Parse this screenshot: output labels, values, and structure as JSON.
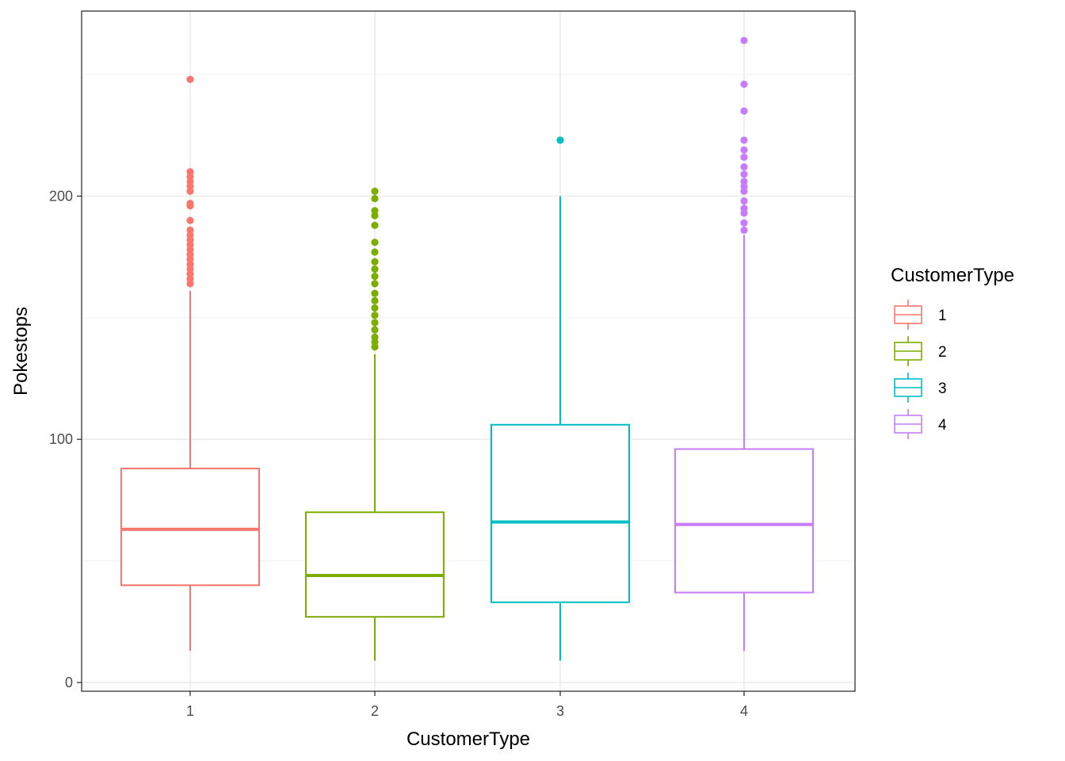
{
  "chart_data": {
    "type": "boxplot",
    "xlabel": "CustomerType",
    "ylabel": "Pokestops",
    "ylim": [
      -4,
      276
    ],
    "y_ticks": [
      0,
      100,
      200
    ],
    "y_minor_ticks": [
      50,
      150,
      250
    ],
    "grid": true,
    "legend": {
      "title": "CustomerType",
      "placement": "right"
    },
    "colors": {
      "1": "#F8766D",
      "2": "#7CAE00",
      "3": "#00BFC4",
      "4": "#C77CFF"
    },
    "categories": [
      "1",
      "2",
      "3",
      "4"
    ],
    "boxes": [
      {
        "category": "1",
        "min": 13,
        "q1": 40,
        "median": 63,
        "q3": 88,
        "max": 161,
        "outliers": [
          164,
          166,
          168,
          170,
          172,
          174,
          176,
          178,
          180,
          182,
          184,
          186,
          190,
          196,
          197,
          202,
          204,
          206,
          208,
          210,
          248
        ]
      },
      {
        "category": "2",
        "min": 9,
        "q1": 27,
        "median": 44,
        "q3": 70,
        "max": 135,
        "outliers": [
          138,
          140,
          142,
          145,
          148,
          151,
          154,
          157,
          160,
          164,
          167,
          170,
          173,
          177,
          181,
          188,
          192,
          194,
          199,
          202
        ]
      },
      {
        "category": "3",
        "min": 9,
        "q1": 33,
        "median": 66,
        "q3": 106,
        "max": 200,
        "outliers": [
          223
        ]
      },
      {
        "category": "4",
        "min": 13,
        "q1": 37,
        "median": 65,
        "q3": 96,
        "max": 184,
        "outliers": [
          186,
          189,
          193,
          195,
          198,
          202,
          204,
          206,
          209,
          212,
          216,
          219,
          223,
          235,
          246,
          264
        ]
      }
    ]
  }
}
